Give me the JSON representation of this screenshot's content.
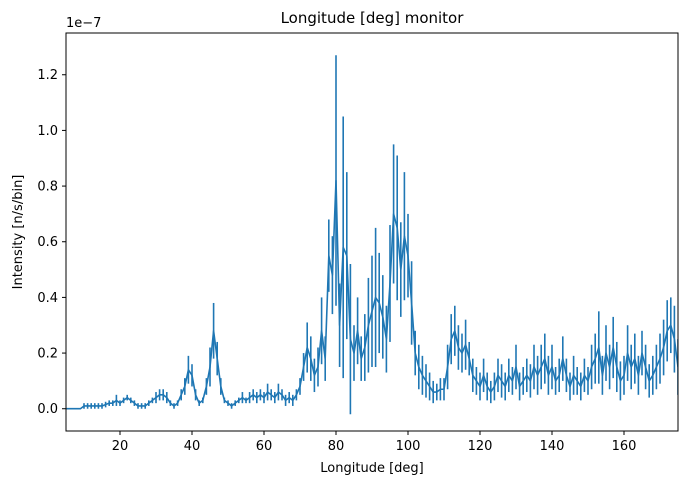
{
  "chart_data": {
    "type": "line",
    "title": "Longitude [deg] monitor",
    "xlabel": "Longitude [deg]",
    "ylabel": "Intensity [n/s/bin]",
    "y_offset_text": "1e−7",
    "y_scale": 1e-07,
    "xlim": [
      5,
      175
    ],
    "ylim": [
      -0.08,
      1.35
    ],
    "xticks": [
      20,
      40,
      60,
      80,
      100,
      120,
      140,
      160
    ],
    "xtick_labels": [
      "20",
      "40",
      "60",
      "80",
      "100",
      "120",
      "140",
      "160"
    ],
    "yticks": [
      0.0,
      0.2,
      0.4,
      0.6,
      0.8,
      1.0,
      1.2
    ],
    "ytick_labels": [
      "0.0",
      "0.2",
      "0.4",
      "0.6",
      "0.8",
      "1.0",
      "1.2"
    ],
    "grid": false,
    "legend": "none",
    "color": "#1f77b4",
    "series": [
      {
        "x": [
          5,
          6,
          7,
          8,
          9,
          10,
          11,
          12,
          13,
          14,
          15,
          16,
          17,
          18,
          19,
          20,
          21,
          22,
          23,
          24,
          25,
          26,
          27,
          28,
          29,
          30,
          31,
          32,
          33,
          34,
          35,
          36,
          37,
          38,
          39,
          40,
          41,
          42,
          43,
          44,
          45,
          46,
          47,
          48,
          49,
          50,
          51,
          52,
          53,
          54,
          55,
          56,
          57,
          58,
          59,
          60,
          61,
          62,
          63,
          64,
          65,
          66,
          67,
          68,
          69,
          70,
          71,
          72,
          73,
          74,
          75,
          76,
          77,
          78,
          79,
          80,
          81,
          82,
          83,
          84,
          85,
          86,
          87,
          88,
          89,
          90,
          91,
          92,
          93,
          94,
          95,
          96,
          97,
          98,
          99,
          100,
          101,
          102,
          103,
          104,
          105,
          106,
          107,
          108,
          109,
          110,
          111,
          112,
          113,
          114,
          115,
          116,
          117,
          118,
          119,
          120,
          121,
          122,
          123,
          124,
          125,
          126,
          127,
          128,
          129,
          130,
          131,
          132,
          133,
          134,
          135,
          136,
          137,
          138,
          139,
          140,
          141,
          142,
          143,
          144,
          145,
          146,
          147,
          148,
          149,
          150,
          151,
          152,
          153,
          154,
          155,
          156,
          157,
          158,
          159,
          160,
          161,
          162,
          163,
          164,
          165,
          166,
          167,
          168,
          169,
          170,
          171,
          172,
          173,
          174,
          175
        ],
        "y": [
          0,
          0,
          0,
          0,
          0,
          0.01,
          0.01,
          0.01,
          0.01,
          0.01,
          0.01,
          0.015,
          0.02,
          0.02,
          0.03,
          0.02,
          0.03,
          0.04,
          0.03,
          0.02,
          0.01,
          0.01,
          0.01,
          0.02,
          0.03,
          0.04,
          0.05,
          0.05,
          0.04,
          0.02,
          0.01,
          0.02,
          0.05,
          0.08,
          0.14,
          0.12,
          0.05,
          0.02,
          0.03,
          0.08,
          0.15,
          0.28,
          0.18,
          0.08,
          0.03,
          0.02,
          0.01,
          0.02,
          0.03,
          0.04,
          0.03,
          0.04,
          0.05,
          0.04,
          0.05,
          0.04,
          0.06,
          0.05,
          0.04,
          0.06,
          0.05,
          0.03,
          0.04,
          0.03,
          0.05,
          0.08,
          0.15,
          0.22,
          0.18,
          0.12,
          0.15,
          0.28,
          0.18,
          0.55,
          0.48,
          0.82,
          0.3,
          0.58,
          0.55,
          0.25,
          0.2,
          0.28,
          0.18,
          0.22,
          0.3,
          0.35,
          0.4,
          0.38,
          0.33,
          0.25,
          0.45,
          0.7,
          0.65,
          0.5,
          0.62,
          0.55,
          0.38,
          0.2,
          0.15,
          0.12,
          0.1,
          0.08,
          0.06,
          0.06,
          0.07,
          0.07,
          0.15,
          0.25,
          0.28,
          0.22,
          0.2,
          0.23,
          0.18,
          0.12,
          0.1,
          0.08,
          0.12,
          0.08,
          0.06,
          0.08,
          0.12,
          0.1,
          0.08,
          0.12,
          0.1,
          0.15,
          0.08,
          0.1,
          0.12,
          0.1,
          0.15,
          0.12,
          0.15,
          0.18,
          0.12,
          0.15,
          0.1,
          0.12,
          0.18,
          0.12,
          0.08,
          0.12,
          0.1,
          0.08,
          0.12,
          0.1,
          0.15,
          0.18,
          0.22,
          0.12,
          0.2,
          0.15,
          0.22,
          0.15,
          0.1,
          0.12,
          0.2,
          0.15,
          0.18,
          0.12,
          0.2,
          0.15,
          0.1,
          0.12,
          0.15,
          0.18,
          0.22,
          0.28,
          0.3,
          0.25,
          0.15
        ],
        "err": [
          0,
          0,
          0,
          0,
          0,
          0.01,
          0.01,
          0.01,
          0.01,
          0.01,
          0.01,
          0.01,
          0.01,
          0.01,
          0.02,
          0.01,
          0.01,
          0.01,
          0.01,
          0.01,
          0.01,
          0.01,
          0.01,
          0.01,
          0.01,
          0.02,
          0.02,
          0.02,
          0.02,
          0.01,
          0.01,
          0.01,
          0.02,
          0.03,
          0.05,
          0.04,
          0.02,
          0.01,
          0.01,
          0.03,
          0.07,
          0.1,
          0.06,
          0.03,
          0.01,
          0.01,
          0.01,
          0.01,
          0.01,
          0.02,
          0.01,
          0.02,
          0.02,
          0.02,
          0.02,
          0.02,
          0.03,
          0.02,
          0.02,
          0.03,
          0.02,
          0.02,
          0.02,
          0.02,
          0.02,
          0.03,
          0.05,
          0.09,
          0.08,
          0.06,
          0.07,
          0.12,
          0.08,
          0.13,
          0.14,
          0.45,
          0.15,
          0.47,
          0.3,
          0.27,
          0.1,
          0.12,
          0.08,
          0.12,
          0.17,
          0.2,
          0.25,
          0.18,
          0.15,
          0.12,
          0.21,
          0.25,
          0.26,
          0.17,
          0.23,
          0.15,
          0.15,
          0.08,
          0.08,
          0.07,
          0.06,
          0.05,
          0.04,
          0.03,
          0.04,
          0.04,
          0.08,
          0.09,
          0.09,
          0.08,
          0.07,
          0.09,
          0.06,
          0.06,
          0.05,
          0.05,
          0.06,
          0.05,
          0.04,
          0.05,
          0.06,
          0.06,
          0.05,
          0.06,
          0.05,
          0.08,
          0.05,
          0.05,
          0.06,
          0.06,
          0.08,
          0.07,
          0.08,
          0.09,
          0.07,
          0.08,
          0.05,
          0.06,
          0.08,
          0.06,
          0.05,
          0.07,
          0.05,
          0.05,
          0.06,
          0.05,
          0.08,
          0.09,
          0.13,
          0.07,
          0.1,
          0.08,
          0.11,
          0.09,
          0.07,
          0.07,
          0.1,
          0.08,
          0.09,
          0.07,
          0.08,
          0.08,
          0.06,
          0.07,
          0.08,
          0.09,
          0.1,
          0.11,
          0.1,
          0.12,
          0.1
        ]
      }
    ]
  }
}
